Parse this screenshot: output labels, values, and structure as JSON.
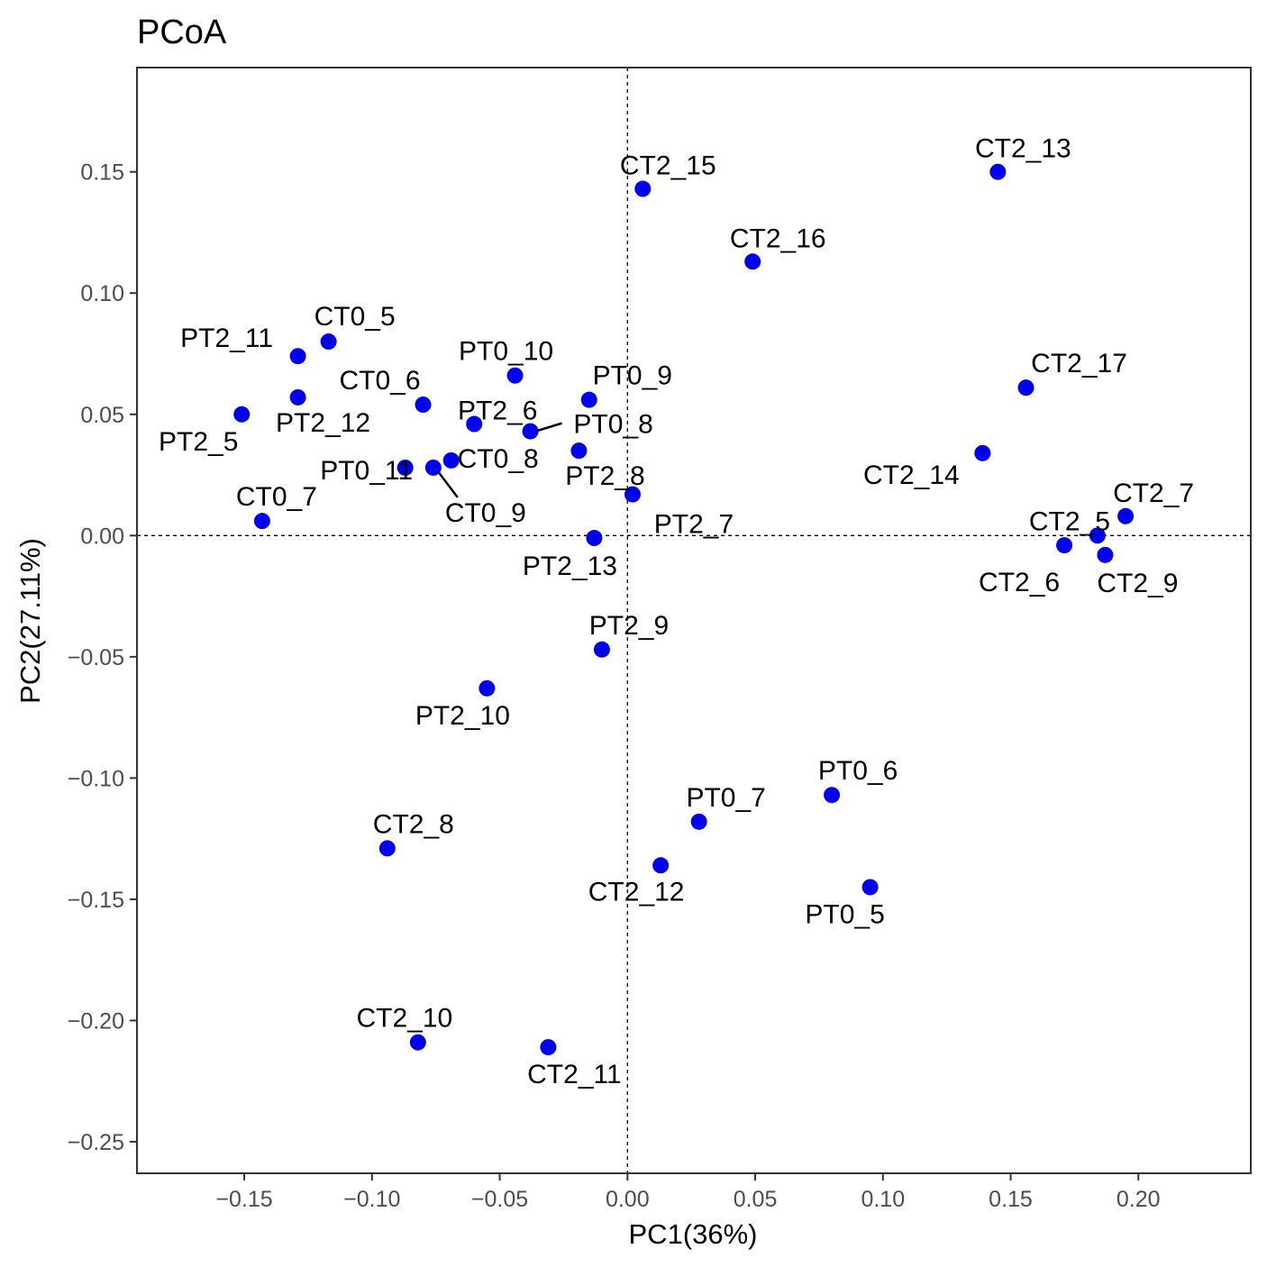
{
  "chart_data": {
    "type": "scatter",
    "title": "PCoA",
    "xlabel": "PC1(36%)",
    "ylabel": "PC2(27.11%)",
    "xlim": [
      -0.192,
      0.244
    ],
    "ylim": [
      -0.263,
      0.193
    ],
    "xticks": [
      -0.15,
      -0.1,
      -0.05,
      0.0,
      0.05,
      0.1,
      0.15,
      0.2
    ],
    "xtick_labels": [
      "−0.15",
      "−0.10",
      "−0.05",
      "0.00",
      "0.05",
      "0.10",
      "0.15",
      "0.20"
    ],
    "yticks": [
      0.15,
      0.1,
      0.05,
      0.0,
      -0.05,
      -0.1,
      -0.15,
      -0.2,
      -0.25
    ],
    "ytick_labels": [
      "0.15",
      "0.10",
      "0.05",
      "0.00",
      "−0.05",
      "−0.10",
      "−0.15",
      "−0.20",
      "−0.25"
    ],
    "reference_lines": {
      "x": 0,
      "y": 0,
      "style": "dashed"
    },
    "grid": false,
    "point_color": "#0000ee",
    "points": [
      {
        "label": "CT2_13",
        "x": 0.145,
        "y": 0.15
      },
      {
        "label": "CT2_15",
        "x": 0.006,
        "y": 0.143
      },
      {
        "label": "CT2_16",
        "x": 0.049,
        "y": 0.113
      },
      {
        "label": "CT0_5",
        "x": -0.117,
        "y": 0.08
      },
      {
        "label": "PT2_11",
        "x": -0.129,
        "y": 0.074
      },
      {
        "label": "PT2_12",
        "x": -0.129,
        "y": 0.057
      },
      {
        "label": "PT2_5",
        "x": -0.151,
        "y": 0.05
      },
      {
        "label": "PT0_10",
        "x": -0.044,
        "y": 0.066
      },
      {
        "label": "PT0_9",
        "x": -0.015,
        "y": 0.056
      },
      {
        "label": "CT0_6",
        "x": -0.08,
        "y": 0.054
      },
      {
        "label": "PT2_6",
        "x": -0.06,
        "y": 0.046
      },
      {
        "label": "PT0_8",
        "x": -0.038,
        "y": 0.043
      },
      {
        "label": "CT2_17",
        "x": 0.156,
        "y": 0.061
      },
      {
        "label": "CT2_14",
        "x": 0.139,
        "y": 0.034
      },
      {
        "label": "PT2_8",
        "x": -0.019,
        "y": 0.035
      },
      {
        "label": "CT0_8",
        "x": -0.069,
        "y": 0.031
      },
      {
        "label": "PT0_11",
        "x": -0.087,
        "y": 0.028
      },
      {
        "label": "CT0_9",
        "x": -0.076,
        "y": 0.028
      },
      {
        "label": "PT2_7",
        "x": 0.002,
        "y": 0.017
      },
      {
        "label": "CT0_7",
        "x": -0.143,
        "y": 0.006
      },
      {
        "label": "PT2_13",
        "x": -0.013,
        "y": -0.001
      },
      {
        "label": "CT2_7",
        "x": 0.195,
        "y": 0.008
      },
      {
        "label": "CT2_5",
        "x": 0.184,
        "y": 0.0
      },
      {
        "label": "CT2_6",
        "x": 0.171,
        "y": -0.004
      },
      {
        "label": "CT2_9",
        "x": 0.187,
        "y": -0.008
      },
      {
        "label": "PT2_9",
        "x": -0.01,
        "y": -0.047
      },
      {
        "label": "PT2_10",
        "x": -0.055,
        "y": -0.063
      },
      {
        "label": "PT0_6",
        "x": 0.08,
        "y": -0.107
      },
      {
        "label": "PT0_7",
        "x": 0.028,
        "y": -0.118
      },
      {
        "label": "CT2_8",
        "x": -0.094,
        "y": -0.129
      },
      {
        "label": "CT2_12",
        "x": 0.013,
        "y": -0.136
      },
      {
        "label": "PT0_5",
        "x": 0.095,
        "y": -0.145
      },
      {
        "label": "CT2_10",
        "x": -0.082,
        "y": -0.209
      },
      {
        "label": "CT2_11",
        "x": -0.031,
        "y": -0.211
      }
    ]
  }
}
